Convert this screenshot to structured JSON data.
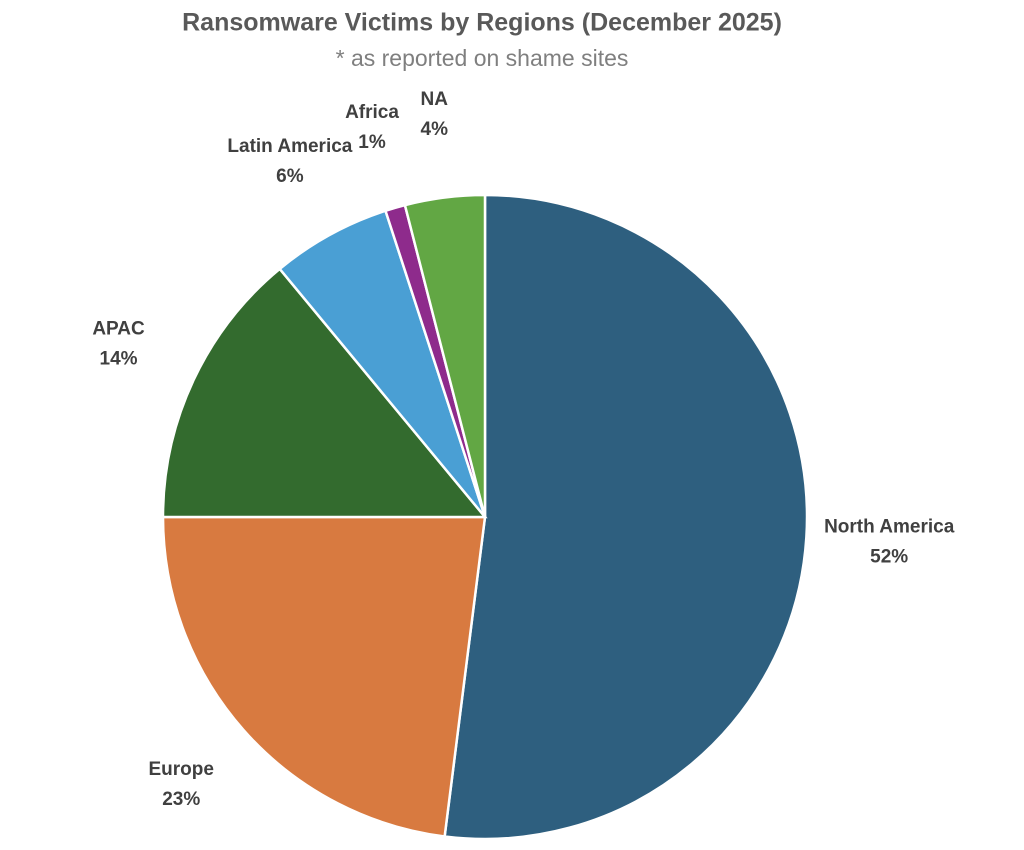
{
  "chart_data": {
    "type": "pie",
    "title": "Ransomware Victims by Regions (December 2025)",
    "subtitle": "* as reported on shame sites",
    "categories": [
      "North America",
      "Europe",
      "APAC",
      "Latin America",
      "Africa",
      "NA"
    ],
    "values": [
      52,
      23,
      14,
      6,
      1,
      4
    ],
    "value_labels": [
      "52%",
      "23%",
      "14%",
      "6%",
      "1%",
      "4%"
    ],
    "colors": [
      "#2e5f7f",
      "#d87a40",
      "#336b2e",
      "#4a9fd4",
      "#8e2b8c",
      "#62a744"
    ]
  }
}
